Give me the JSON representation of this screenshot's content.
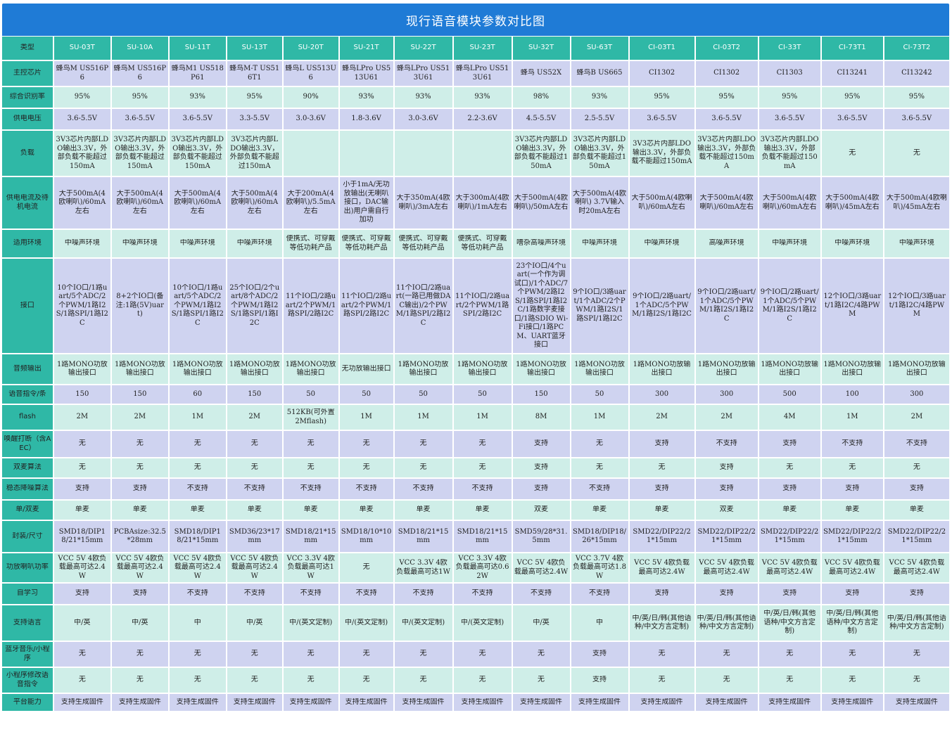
{
  "title": "现行语音模块参数对比图",
  "models": [
    "SU-03T",
    "SU-10A",
    "SU-11T",
    "SU-13T",
    "SU-20T",
    "SU-21T",
    "SU-22T",
    "SU-23T",
    "SU-32T",
    "SU-63T",
    "CI-03T1",
    "CI-03T2",
    "CI-33T",
    "CI-73T1",
    "CI-73T2"
  ],
  "rows": [
    {
      "label": "主控芯片",
      "cells": [
        "蜂鸟M US516P6",
        "蜂鸟M US516P6",
        "蜂鸟M1 US518P61",
        "蜂鸟M-T US516T1",
        "蜂鸟L US513U6",
        "蜂鸟LPro US513U61",
        "蜂鸟LPro US513U61",
        "蜂鸟LPro US513U61",
        "蜂鸟 US52X",
        "蜂鸟B US665",
        "CI1302",
        "CI1302",
        "CI1303",
        "CI13241",
        "CI13242"
      ]
    },
    {
      "label": "综合识别率",
      "cells": [
        "95%",
        "95%",
        "93%",
        "95%",
        "90%",
        "93%",
        "93%",
        "93%",
        "98%",
        "93%",
        "95%",
        "95%",
        "95%",
        "95%",
        "95%"
      ]
    },
    {
      "label": "供电电压",
      "cells": [
        "3.6-5.5V",
        "3.6-5.5V",
        "3.6-5.5V",
        "3.3-5.5V",
        "3.0-3.6V",
        "1.8-3.6V",
        "3.0-3.6V",
        "2.2-3.6V",
        "4.5-5.5V",
        "2.5-5.5V",
        "3.6-5.5V",
        "3.6-5.5V",
        "3.6-5.5V",
        "3.6-5.5V",
        "3.6-5.5V"
      ]
    },
    {
      "label": "负载",
      "cells": [
        "3V3芯片内部LDO输出3.3V，外部负载不能超过150mA",
        "3V3芯片内部LDO输出3.3V，外部负载不能超过150mA",
        "3V3芯片内部LDO输出3.3V，外部负载不能超过150mA",
        "3V3芯片内部LDO输出3.3V，外部负载不能超过150mA",
        "",
        "",
        "",
        "",
        "3V3芯片内部LDO输出3.3V，外部负载不能超过150mA",
        "3V3芯片内部LDO输出3.3V，外部负载不能超过150mA",
        "3V3芯片内部LDO输出3.3V，外部负载不能超过150mA",
        "3V3芯片内部LDO输出3.3V，外部负载不能超过150mA",
        "3V3芯片内部LDO输出3.3V，外部负载不能超过150mA",
        "无",
        "无"
      ]
    },
    {
      "label": "供电电流及待机电流",
      "cells": [
        "大于500mA(4欧喇叭)/60mA左右",
        "大于500mA(4欧喇叭)/60mA左右",
        "大于500mA(4欧喇叭)/60mA左右",
        "大于500mA(4欧喇叭)/60mA左右",
        "大于200mA(4欧喇叭)/5.5mA左右",
        "小于1mA/无功放输出(无喇叭接口，DAC输出)用户需自行加功",
        "大于350mA(4欧喇叭)/3mA左右",
        "大于300mA(4欧喇叭)/1mA左右",
        "大于500mA(4欧喇叭)/50mA左右",
        "大于500mA(4欧喇叭) 3.7V输入时20mA左右",
        "大于500mA(4欧喇叭)/60mA左右",
        "大于500mA(4欧喇叭)/60mA左右",
        "大于500mA(4欧喇叭)/60mA左右",
        "大于500mA(4欧喇叭)/45mA左右",
        "大于500mA(4欧喇叭)/45mA左右"
      ]
    },
    {
      "label": "适用环境",
      "cells": [
        "中噪声环境",
        "中噪声环境",
        "中噪声环境",
        "中噪声环境",
        "便携式、可穿戴等低功耗产品",
        "便携式、可穿戴等低功耗产品",
        "便携式、可穿戴等低功耗产品",
        "便携式、可穿戴等低功耗产品",
        "嘈杂高噪声环境",
        "中噪声环境",
        "中噪声环境",
        "高噪声环境",
        "中噪声环境",
        "中噪声环境",
        "中噪声环境"
      ]
    },
    {
      "label": "接口",
      "cells": [
        "10个IO口/1路uart/5个ADC/2个PWM/1路I2S/1路SPI/1路I2C",
        "8+2个IO口(备注:1路(5V)uart)",
        "10个IO口/1路uart/5个ADC/2个PWM/1路I2S/1路SPI/1路I2C",
        "25个IO口/2个uart/8个ADC/2个PWM/1路I2S/1路SPI/1路I2C",
        "11个IO口/2路uart/2个PWM/1路SPI/2路I2C",
        "11个IO口/2路uart/2个PWM/1路SPI/2路I2C",
        "11个IO口/2路uart(一路已用做DAC输出)/2个PWM/1路SPI/2路I2C",
        "11个IO口/2路uart/2个PWM/1路SPI/2路I2C",
        "23个IO口/4个uart(一个作为调试口)/1个ADC/7个PWM/2路I2S/1路SPI/1路I2C/1路数字麦接口/1路SDIO Wi-Fi接口/1路PCM、UART蓝牙接口",
        "9个IO口/3路uart/1个ADC/2个PWM/1路I2S/1路SPI/1路I2C",
        "9个IO口/2路uart/1个ADC/5个PWM/1路I2S/1路I2C",
        "9个IO口/2路uart/1个ADC/5个PWM/1路I2S/1路I2C",
        "9个IO口/2路uart/1个ADC/5个PWM/1路I2S/1路I2C",
        "12个IO口/3路uart/1路I2C/4路PWM",
        "12个IO口/3路uart/1路I2C/4路PWM"
      ]
    },
    {
      "label": "音频输出",
      "cells": [
        "1路MONO功放输出接口",
        "1路MONO功放输出接口",
        "1路MONO功放输出接口",
        "1路MONO功放输出接口",
        "1路MONO功放输出接口",
        "无功放输出接口",
        "1路MONO功放输出接口",
        "1路MONO功放输出接口",
        "1路MONO功放输出接口",
        "1路MONO功放输出接口",
        "1路MONO功放输出接口",
        "1路MONO功放输出接口",
        "1路MONO功放输出接口",
        "1路MONO功放输出接口",
        "1路MONO功放输出接口"
      ]
    },
    {
      "label": "语音指令/条",
      "cells": [
        "150",
        "150",
        "60",
        "150",
        "50",
        "50",
        "50",
        "50",
        "150",
        "50",
        "300",
        "300",
        "500",
        "100",
        "300"
      ]
    },
    {
      "label": "flash",
      "cells": [
        "2M",
        "2M",
        "1M",
        "2M",
        "512KB(可外置2Mflash)",
        "1M",
        "1M",
        "1M",
        "8M",
        "1M",
        "2M",
        "2M",
        "4M",
        "1M",
        "2M"
      ]
    },
    {
      "label": "唤醒打断（含AEC）",
      "cells": [
        "无",
        "无",
        "无",
        "无",
        "无",
        "无",
        "无",
        "无",
        "支持",
        "无",
        "支持",
        "不支持",
        "支持",
        "不支持",
        "不支持"
      ]
    },
    {
      "label": "双麦算法",
      "cells": [
        "无",
        "无",
        "无",
        "无",
        "无",
        "无",
        "无",
        "无",
        "支持",
        "无",
        "无",
        "支持",
        "无",
        "无",
        "无"
      ]
    },
    {
      "label": "稳态降噪算法",
      "cells": [
        "支持",
        "支持",
        "不支持",
        "不支持",
        "不支持",
        "不支持",
        "不支持",
        "不支持",
        "支持",
        "不支持",
        "支持",
        "支持",
        "支持",
        "支持",
        "支持"
      ]
    },
    {
      "label": "单/双麦",
      "cells": [
        "单麦",
        "单麦",
        "单麦",
        "单麦",
        "单麦",
        "单麦",
        "单麦",
        "单麦",
        "双麦",
        "单麦",
        "单麦",
        "双麦",
        "单麦",
        "单麦",
        "单麦"
      ]
    },
    {
      "label": "封装/尺寸",
      "cells": [
        "SMD18/DIP18/21*15mm",
        "PCBAsize:32.5*28mm",
        "SMD18/DIP18/21*15mm",
        "SMD36/23*17mm",
        "SMD18/21*15mm",
        "SMD18/10*10mm",
        "SMD18/21*15mm",
        "SMD18/21*15mm",
        "SMD59/28*31.5mm",
        "SMD18/DIP18/26*15mm",
        "SMD22/DIP22/21*15mm",
        "SMD22/DIP22/21*15mm",
        "SMD22/DIP22/21*15mm",
        "SMD22/DIP22/21*15mm",
        "SMD22/DIP22/21*15mm"
      ]
    },
    {
      "label": "功放喇叭功率",
      "cells": [
        "VCC 5V 4欧负载最高可达2.4W",
        "VCC 5V 4欧负载最高可达2.4W",
        "VCC 5V 4欧负载最高可达2.4W",
        "VCC 5V 4欧负载最高可达2.4W",
        "VCC 3.3V 4欧负载最高可达1W",
        "无",
        "VCC 3.3V 4欧负载最高可达1W",
        "VCC 3.3V 4欧负载最高可达0.62W",
        "VCC 5V 4欧负载最高可达2.4W",
        "VCC 3.7V 4欧负载最高可达1.8W",
        "VCC 5V 4欧负载最高可达2.4W",
        "VCC 5V 4欧负载最高可达2.4W",
        "VCC 5V 4欧负载最高可达2.4W",
        "VCC 5V 4欧负载最高可达2.4W",
        "VCC 5V 4欧负载最高可达2.4W"
      ]
    },
    {
      "label": "自学习",
      "cells": [
        "支持",
        "支持",
        "不支持",
        "不支持",
        "不支持",
        "不支持",
        "不支持",
        "不支持",
        "不支持",
        "不支持",
        "支持",
        "支持",
        "支持",
        "支持",
        "支持"
      ]
    },
    {
      "label": "支持语言",
      "cells": [
        "中/英",
        "中/英",
        "中",
        "中/英",
        "中/(英文定制)",
        "中/(英文定制)",
        "中/(英文定制)",
        "中/(英文定制)",
        "中/英",
        "中",
        "中/英/日/韩(其他语种/中文方言定制)",
        "中/英/日/韩(其他语种/中文方言定制)",
        "中/英/日/韩(其他语种/中文方言定制)",
        "中/英/日/韩(其他语种/中文方言定制)",
        "中/英/日/韩(其他语种/中文方言定制)"
      ]
    },
    {
      "label": "蓝牙音乐/小程序",
      "cells": [
        "无",
        "无",
        "无",
        "无",
        "无",
        "无",
        "无",
        "无",
        "无",
        "支持",
        "无",
        "无",
        "无",
        "无",
        "无"
      ]
    },
    {
      "label": "小程序修改语音指令",
      "cells": [
        "无",
        "无",
        "无",
        "无",
        "无",
        "无",
        "无",
        "无",
        "无",
        "支持",
        "无",
        "无",
        "无",
        "无",
        "无"
      ]
    },
    {
      "label": "平台能力",
      "cells": [
        "支持生成固件",
        "支持生成固件",
        "支持生成固件",
        "支持生成固件",
        "支持生成固件",
        "支持生成固件",
        "支持生成固件",
        "支持生成固件",
        "支持生成固件",
        "支持生成固件",
        "支持生成固件",
        "支持生成固件",
        "支持生成固件",
        "支持生成固件",
        "支持生成固件"
      ]
    }
  ],
  "header_label": "类型"
}
